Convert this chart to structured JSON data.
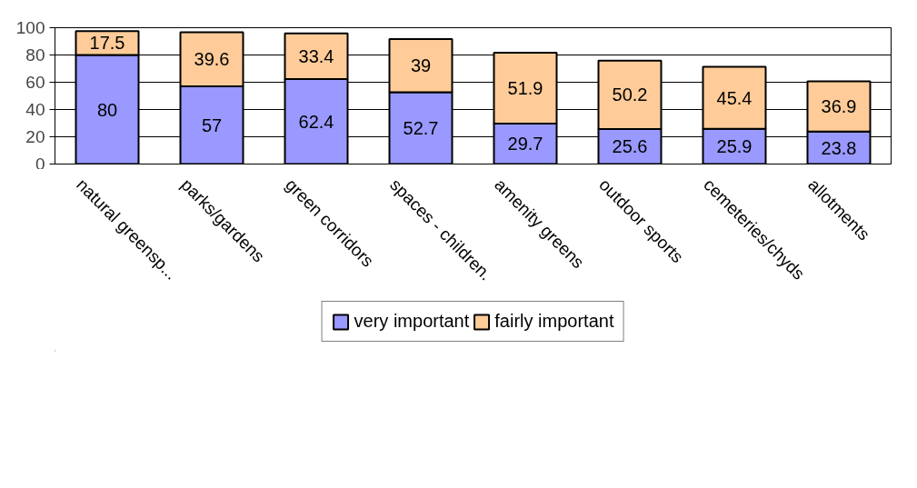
{
  "chart_data": {
    "type": "bar",
    "stacked": true,
    "data_labels": true,
    "legend": "bottom",
    "grid": "y",
    "categories": [
      "natural greensp...",
      "parks/gardens",
      "green corridors",
      "spaces - children.",
      "amenity greens",
      "outdoor sports",
      "cemeteries/chyds",
      "allotments"
    ],
    "series": [
      {
        "name": "very important",
        "color": "#9999ff",
        "values": [
          80,
          57,
          62.4,
          52.7,
          29.7,
          25.6,
          25.9,
          23.8
        ]
      },
      {
        "name": "fairly important",
        "color": "#ffcc99",
        "values": [
          17.5,
          39.6,
          33.4,
          39,
          51.9,
          50.2,
          45.4,
          36.9
        ]
      }
    ],
    "ylim": [
      0,
      100
    ],
    "yticks": [
      0,
      20,
      40,
      60,
      80,
      100
    ]
  }
}
